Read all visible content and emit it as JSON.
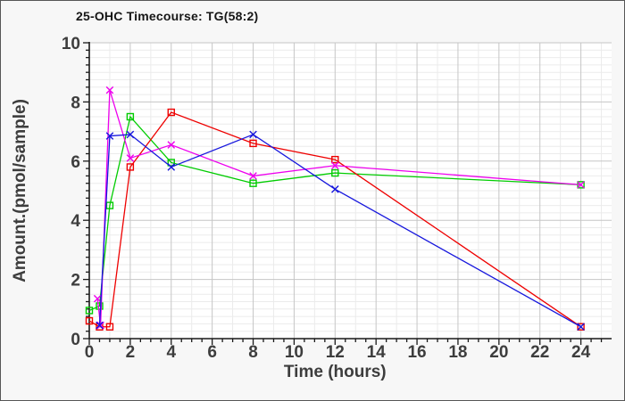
{
  "style": {
    "background": "#f7f7f7",
    "plot_background": "#ffffff",
    "axis_color": "#1a1a1a",
    "text_color": "#3d3d3d",
    "title_color": "#161616",
    "grid_minor": "#ebebeb",
    "grid_major": "#c6c6c6",
    "border_color": "#565656"
  },
  "chart_data": {
    "type": "line",
    "title": "25-OHC Timecourse: TG(58:2)",
    "xlabel": "Time (hours)",
    "ylabel": "Amount.(pmol/sample)",
    "xlim": [
      0,
      25.5
    ],
    "ylim": [
      0,
      10
    ],
    "x_ticks": [
      0,
      2,
      4,
      6,
      8,
      10,
      12,
      14,
      16,
      18,
      20,
      22,
      24
    ],
    "y_ticks": [
      0,
      2,
      4,
      6,
      8,
      10
    ],
    "x_minor_tick_step": 0.5,
    "y_minor_tick_step": 0.25,
    "x_minor_grid_step": 1,
    "y_minor_grid_step": 0.25,
    "grid": true,
    "legend": "none",
    "series": [
      {
        "name": "green-squares",
        "color": "#00cc00",
        "marker": "square",
        "points": [
          [
            0,
            0.95
          ],
          [
            0.5,
            1.1
          ],
          [
            1,
            4.5
          ],
          [
            2,
            7.5
          ],
          [
            4,
            5.95
          ],
          [
            8,
            5.25
          ],
          [
            12,
            5.6
          ],
          [
            24,
            5.2
          ]
        ]
      },
      {
        "name": "red-squares",
        "color": "#ee0000",
        "marker": "square",
        "points": [
          [
            0,
            0.6
          ],
          [
            0.5,
            0.4
          ],
          [
            1,
            0.4
          ],
          [
            2,
            5.8
          ],
          [
            4,
            7.65
          ],
          [
            8,
            6.6
          ],
          [
            12,
            6.05
          ],
          [
            24,
            0.4
          ]
        ]
      },
      {
        "name": "magenta-x",
        "color": "#ee00ee",
        "marker": "x",
        "points": [
          [
            0.4,
            1.35
          ],
          [
            0.55,
            0.45
          ],
          [
            1,
            8.4
          ],
          [
            2,
            6.1
          ],
          [
            4,
            6.55
          ],
          [
            8,
            5.5
          ],
          [
            12,
            5.85
          ],
          [
            24,
            5.2
          ]
        ]
      },
      {
        "name": "blue-x",
        "color": "#1717dd",
        "marker": "x",
        "points": [
          [
            0.5,
            0.45
          ],
          [
            1,
            6.85
          ],
          [
            2,
            6.9
          ],
          [
            4,
            5.8
          ],
          [
            8,
            6.9
          ],
          [
            12,
            5.05
          ],
          [
            24,
            0.4
          ]
        ]
      }
    ]
  }
}
